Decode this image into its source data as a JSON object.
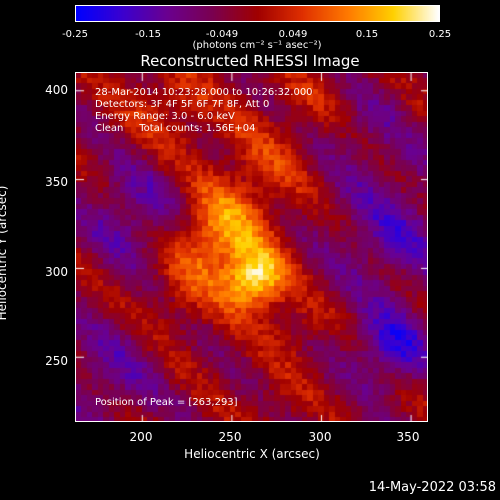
{
  "colorbar": {
    "ticks": [
      "-0.25",
      "-0.15",
      "-0.049",
      "0.049",
      "0.15",
      "0.25"
    ],
    "tick_values": [
      -0.25,
      -0.15,
      -0.049,
      0.049,
      0.15,
      0.25
    ],
    "min": -0.25,
    "max": 0.25,
    "unit": "(photons cm⁻² s⁻¹ asec⁻²)",
    "colors": [
      "#0000ff",
      "#3a00d0",
      "#6a0090",
      "#7a0050",
      "#a00000",
      "#e03000",
      "#ff7a00",
      "#ffd000",
      "#ffffff"
    ]
  },
  "chart_data": {
    "type": "heatmap",
    "title": "Reconstructed RHESSI Image",
    "xlabel": "Heliocentric X (arcsec)",
    "ylabel": "Heliocentric Y (arcsec)",
    "x_ticks": [
      200,
      250,
      300,
      350
    ],
    "y_ticks": [
      250,
      300,
      350,
      400
    ],
    "xlim": [
      163,
      360
    ],
    "ylim": [
      213,
      410
    ],
    "peak_position": [
      263,
      293
    ],
    "sources": [
      {
        "x": 263,
        "y": 293,
        "intensity": 0.25,
        "sigma": 12
      },
      {
        "x": 248,
        "y": 325,
        "intensity": 0.12,
        "sigma": 18
      },
      {
        "x": 235,
        "y": 310,
        "intensity": 0.08,
        "sigma": 16
      },
      {
        "x": 270,
        "y": 360,
        "intensity": 0.06,
        "sigma": 20
      },
      {
        "x": 215,
        "y": 390,
        "intensity": 0.07,
        "sigma": 18
      },
      {
        "x": 300,
        "y": 395,
        "intensity": 0.05,
        "sigma": 16
      },
      {
        "x": 220,
        "y": 280,
        "intensity": 0.05,
        "sigma": 14
      },
      {
        "x": 285,
        "y": 265,
        "intensity": 0.05,
        "sigma": 12
      },
      {
        "x": 275,
        "y": 225,
        "intensity": 0.04,
        "sigma": 10
      },
      {
        "x": 195,
        "y": 330,
        "intensity": -0.1,
        "sigma": 20
      },
      {
        "x": 180,
        "y": 240,
        "intensity": -0.08,
        "sigma": 20
      },
      {
        "x": 340,
        "y": 320,
        "intensity": -0.1,
        "sigma": 25
      },
      {
        "x": 340,
        "y": 255,
        "intensity": -0.15,
        "sigma": 15
      },
      {
        "x": 320,
        "y": 380,
        "intensity": -0.06,
        "sigma": 20
      }
    ],
    "annotations": {
      "time_range": "28-Mar-2014 10:23:28.000 to 10:26:32.000",
      "detectors": "Detectors: 3F 4F 5F 6F 7F 8F, Att 0",
      "energy": "Energy Range: 3.0 - 6.0 keV",
      "method": "Clean     Total counts: 1.56E+04",
      "peak": "Position of Peak = [263,293]"
    }
  },
  "footer": {
    "timestamp": "14-May-2022 03:58"
  }
}
